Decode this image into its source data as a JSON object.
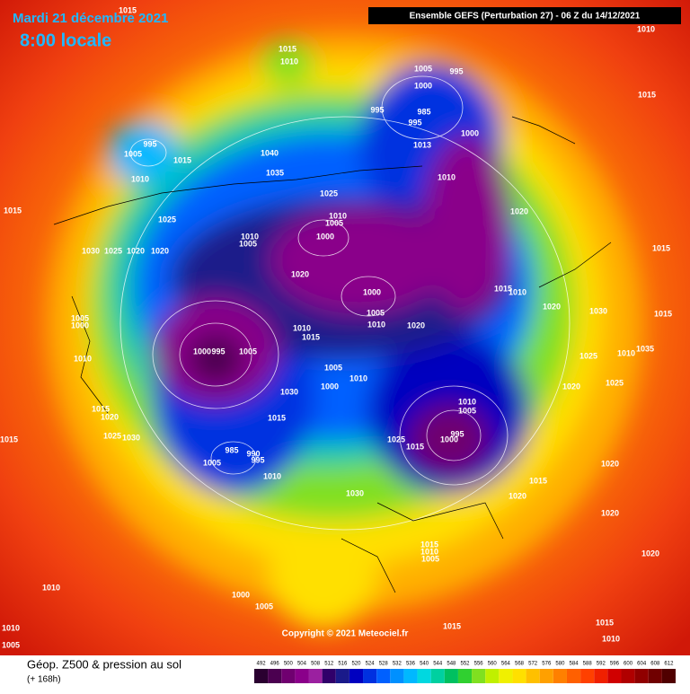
{
  "header": {
    "date": "Mardi 21 décembre 2021",
    "time": "8:00 locale",
    "run": "Ensemble GEFS  (Perturbation 27)  -  06 Z du 14/12/2021"
  },
  "footer": {
    "title": "Géop. Z500 & pression au sol",
    "lead": "(+ 168h)",
    "copyright": "Copyright © 2021 Meteociel.fr"
  },
  "legend": {
    "ticks": [
      492,
      496,
      500,
      504,
      508,
      512,
      516,
      520,
      524,
      528,
      532,
      536,
      540,
      544,
      548,
      552,
      556,
      560,
      564,
      568,
      572,
      576,
      580,
      584,
      588,
      592,
      596,
      600,
      604,
      608,
      612
    ],
    "colors": [
      "#2a0030",
      "#4b0050",
      "#700070",
      "#8a008a",
      "#9b20a0",
      "#30006a",
      "#1a1a8a",
      "#0000c0",
      "#0030e0",
      "#0060ff",
      "#0090ff",
      "#00b8ff",
      "#00d8e0",
      "#00d0a0",
      "#00c060",
      "#30d030",
      "#80e020",
      "#c0f000",
      "#f0f000",
      "#ffe000",
      "#ffc000",
      "#ffa000",
      "#ff8000",
      "#ff6000",
      "#ff4000",
      "#f02000",
      "#d00000",
      "#b00000",
      "#900000",
      "#700000",
      "#500000"
    ]
  },
  "isobar_labels": [
    "1015",
    "1015",
    "1010",
    "1005",
    "995",
    "1000",
    "995",
    "985",
    "995",
    "1013",
    "1000",
    "995",
    "1005",
    "1015",
    "1010",
    "1040",
    "1035",
    "1010",
    "1025",
    "1015",
    "1025",
    "1010",
    "1005",
    "1010",
    "1005",
    "1000",
    "1020",
    "1030",
    "1025",
    "1020",
    "1020",
    "1020",
    "1015",
    "1010",
    "1000",
    "1005",
    "1010",
    "1020",
    "1020",
    "1030",
    "1015",
    "1005",
    "1000",
    "1010",
    "1015",
    "1000",
    "995",
    "1005",
    "1010",
    "1025",
    "1010",
    "1035",
    "1005",
    "1010",
    "1000",
    "1030",
    "1020",
    "1025",
    "1015",
    "1020",
    "1010",
    "1005",
    "995",
    "1000",
    "1025",
    "1015",
    "1015",
    "1025",
    "1030",
    "1015",
    "985",
    "990",
    "995",
    "1005",
    "1010",
    "1030",
    "1015",
    "1020",
    "1020",
    "1020",
    "1015",
    "1010",
    "1005",
    "1020",
    "1010",
    "1000",
    "1005",
    "1015",
    "1015",
    "1010",
    "1010",
    "1005",
    "1010",
    "1015",
    "1015"
  ]
}
